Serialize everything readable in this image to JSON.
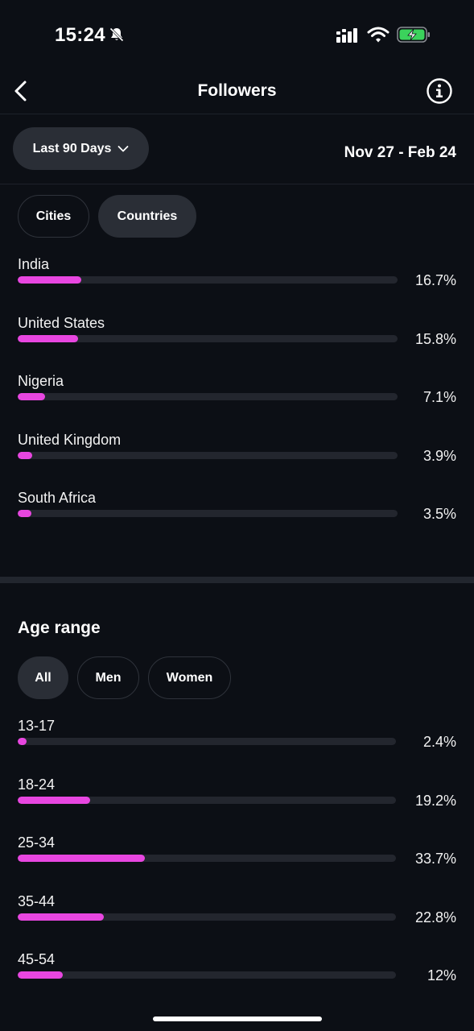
{
  "status_bar": {
    "time": "15:24"
  },
  "header": {
    "title": "Followers"
  },
  "filters": {
    "period_label": "Last 90 Days",
    "date_range": "Nov 27 - Feb 24"
  },
  "location_tabs": [
    {
      "label": "Cities",
      "active": false
    },
    {
      "label": "Countries",
      "active": true
    }
  ],
  "countries": [
    {
      "label": "India",
      "value_text": "16.7%",
      "value": 16.7
    },
    {
      "label": "United States",
      "value_text": "15.8%",
      "value": 15.8
    },
    {
      "label": "Nigeria",
      "value_text": "7.1%",
      "value": 7.1
    },
    {
      "label": "United Kingdom",
      "value_text": "3.9%",
      "value": 3.9
    },
    {
      "label": "South Africa",
      "value_text": "3.5%",
      "value": 3.5
    }
  ],
  "age_section": {
    "title": "Age range",
    "tabs": [
      {
        "label": "All",
        "active": true
      },
      {
        "label": "Men",
        "active": false
      },
      {
        "label": "Women",
        "active": false
      }
    ],
    "ranges": [
      {
        "label": "13-17",
        "value_text": "2.4%",
        "value": 2.4
      },
      {
        "label": "18-24",
        "value_text": "19.2%",
        "value": 19.2
      },
      {
        "label": "25-34",
        "value_text": "33.7%",
        "value": 33.7
      },
      {
        "label": "35-44",
        "value_text": "22.8%",
        "value": 22.8
      },
      {
        "label": "45-54",
        "value_text": "12%",
        "value": 12
      }
    ]
  },
  "colors": {
    "background": "#0c0f15",
    "bar_fill": "#e846e0",
    "bar_track": "#23262e",
    "pill_active": "#2a2e36"
  }
}
